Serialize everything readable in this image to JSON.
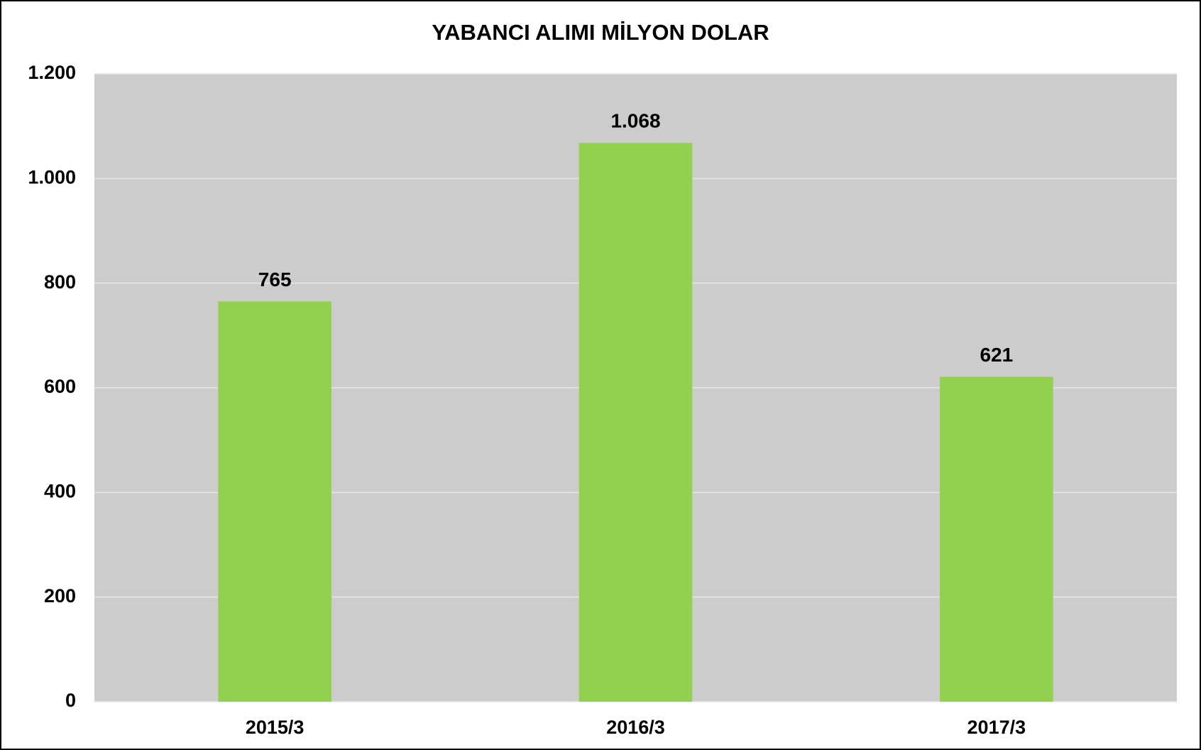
{
  "chart_data": {
    "type": "bar",
    "title": "YABANCI ALIMI MİLYON DOLAR",
    "categories": [
      "2015/3",
      "2016/3",
      "2017/3"
    ],
    "values": [
      765,
      1068,
      621
    ],
    "value_labels": [
      "765",
      "1.068",
      "621"
    ],
    "color": "#92d050",
    "ylim": [
      0,
      1200
    ],
    "yticks": [
      0,
      200,
      400,
      600,
      800,
      {
        "value": 1000,
        "label": "1.000"
      },
      {
        "value": 1200,
        "label": "1.200"
      }
    ],
    "grid": true
  }
}
